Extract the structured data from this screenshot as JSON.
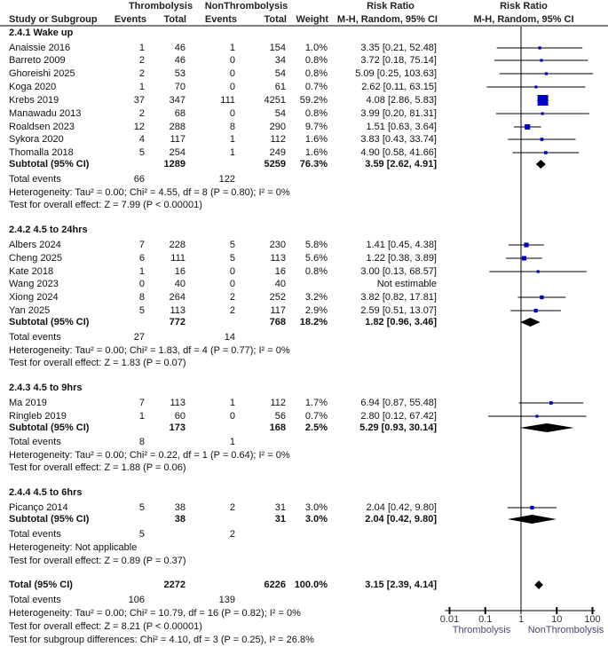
{
  "header": {
    "group1": "Thrombolysis",
    "group2": "NonThrombolysis",
    "rr_title": "Risk Ratio",
    "plot_title": "Risk Ratio",
    "study_col": "Study or Subgroup",
    "events": "Events",
    "total": "Total",
    "weight": "Weight",
    "method": "M-H, Random, 95% CI",
    "plot_method": "M-H, Random, 95% CI"
  },
  "chart_data": {
    "type": "forest",
    "x_scale": "log",
    "xlim": [
      0.01,
      100
    ],
    "x_ticks": [
      "0.01",
      "0.1",
      "1",
      "10",
      "100"
    ],
    "x_label_left": "Thrombolysis",
    "x_label_right": "NonThrombolysis",
    "marker_color": "#0000c8",
    "subgroups": [
      {
        "title": "2.4.1 Wake up",
        "studies": [
          {
            "name": "Anaissie 2016",
            "e1": "1",
            "n1": "46",
            "e2": "1",
            "n2": "154",
            "weight": "1.0%",
            "w": 1.0,
            "rr": 3.35,
            "lo": 0.21,
            "hi": 52.48,
            "ci": "3.35 [0.21, 52.48]"
          },
          {
            "name": "Barreto 2009",
            "e1": "2",
            "n1": "46",
            "e2": "0",
            "n2": "34",
            "weight": "0.8%",
            "w": 0.8,
            "rr": 3.72,
            "lo": 0.18,
            "hi": 75.14,
            "ci": "3.72 [0.18, 75.14]"
          },
          {
            "name": "Ghoreishi 2025",
            "e1": "2",
            "n1": "53",
            "e2": "0",
            "n2": "54",
            "weight": "0.8%",
            "w": 0.8,
            "rr": 5.09,
            "lo": 0.25,
            "hi": 103.63,
            "ci": "5.09 [0.25, 103.63]"
          },
          {
            "name": "Koga 2020",
            "e1": "1",
            "n1": "70",
            "e2": "0",
            "n2": "61",
            "weight": "0.7%",
            "w": 0.7,
            "rr": 2.62,
            "lo": 0.11,
            "hi": 63.15,
            "ci": "2.62 [0.11, 63.15]"
          },
          {
            "name": "Krebs 2019",
            "e1": "37",
            "n1": "347",
            "e2": "111",
            "n2": "4251",
            "weight": "59.2%",
            "w": 59.2,
            "rr": 4.08,
            "lo": 2.86,
            "hi": 5.83,
            "ci": "4.08 [2.86, 5.83]"
          },
          {
            "name": "Manawadu 2013",
            "e1": "2",
            "n1": "68",
            "e2": "0",
            "n2": "54",
            "weight": "0.8%",
            "w": 0.8,
            "rr": 3.99,
            "lo": 0.2,
            "hi": 81.31,
            "ci": "3.99 [0.20, 81.31]"
          },
          {
            "name": "Roaldsen 2023",
            "e1": "12",
            "n1": "288",
            "e2": "8",
            "n2": "290",
            "weight": "9.7%",
            "w": 9.7,
            "rr": 1.51,
            "lo": 0.63,
            "hi": 3.64,
            "ci": "1.51 [0.63, 3.64]"
          },
          {
            "name": "Sykora 2020",
            "e1": "4",
            "n1": "117",
            "e2": "1",
            "n2": "112",
            "weight": "1.6%",
            "w": 1.6,
            "rr": 3.83,
            "lo": 0.43,
            "hi": 33.74,
            "ci": "3.83 [0.43, 33.74]"
          },
          {
            "name": "Thomalla 2018",
            "e1": "5",
            "n1": "254",
            "e2": "1",
            "n2": "249",
            "weight": "1.6%",
            "w": 1.6,
            "rr": 4.9,
            "lo": 0.58,
            "hi": 41.66,
            "ci": "4.90 [0.58, 41.66]"
          }
        ],
        "subtotal": {
          "label": "Subtotal (95% CI)",
          "n1": "1289",
          "n2": "5259",
          "weight": "76.3%",
          "rr": 3.59,
          "lo": 2.62,
          "hi": 4.91,
          "ci": "3.59 [2.62, 4.91]"
        },
        "total_events": {
          "label": "Total events",
          "e1": "66",
          "e2": "122"
        },
        "heterogeneity": "Heterogeneity: Tau² = 0.00; Chi² = 4.55, df = 8 (P = 0.80); I² = 0%",
        "overall": "Test for overall effect: Z = 7.99 (P < 0.00001)"
      },
      {
        "title": "2.4.2 4.5 to 24hrs",
        "studies": [
          {
            "name": "Albers 2024",
            "e1": "7",
            "n1": "228",
            "e2": "5",
            "n2": "230",
            "weight": "5.8%",
            "w": 5.8,
            "rr": 1.41,
            "lo": 0.45,
            "hi": 4.38,
            "ci": "1.41 [0.45, 4.38]"
          },
          {
            "name": "Cheng 2025",
            "e1": "6",
            "n1": "111",
            "e2": "5",
            "n2": "113",
            "weight": "5.6%",
            "w": 5.6,
            "rr": 1.22,
            "lo": 0.38,
            "hi": 3.89,
            "ci": "1.22 [0.38, 3.89]"
          },
          {
            "name": "Kate 2018",
            "e1": "1",
            "n1": "16",
            "e2": "0",
            "n2": "16",
            "weight": "0.8%",
            "w": 0.8,
            "rr": 3.0,
            "lo": 0.13,
            "hi": 68.57,
            "ci": "3.00 [0.13, 68.57]"
          },
          {
            "name": "Wang 2023",
            "e1": "0",
            "n1": "40",
            "e2": "0",
            "n2": "40",
            "weight": "",
            "w": null,
            "rr": null,
            "lo": null,
            "hi": null,
            "ci": "Not estimable"
          },
          {
            "name": "Xiong 2024",
            "e1": "8",
            "n1": "264",
            "e2": "2",
            "n2": "252",
            "weight": "3.2%",
            "w": 3.2,
            "rr": 3.82,
            "lo": 0.82,
            "hi": 17.81,
            "ci": "3.82 [0.82, 17.81]"
          },
          {
            "name": "Yan 2025",
            "e1": "5",
            "n1": "113",
            "e2": "2",
            "n2": "117",
            "weight": "2.9%",
            "w": 2.9,
            "rr": 2.59,
            "lo": 0.51,
            "hi": 13.07,
            "ci": "2.59 [0.51, 13.07]"
          }
        ],
        "subtotal": {
          "label": "Subtotal (95% CI)",
          "n1": "772",
          "n2": "768",
          "weight": "18.2%",
          "rr": 1.82,
          "lo": 0.96,
          "hi": 3.46,
          "ci": "1.82 [0.96, 3.46]"
        },
        "total_events": {
          "label": "Total events",
          "e1": "27",
          "e2": "14"
        },
        "heterogeneity": "Heterogeneity: Tau² = 0.00; Chi² = 1.83, df = 4 (P = 0.77); I² = 0%",
        "overall": "Test for overall effect: Z = 1.83 (P = 0.07)"
      },
      {
        "title": "2.4.3 4.5 to 9hrs",
        "studies": [
          {
            "name": "Ma 2019",
            "e1": "7",
            "n1": "113",
            "e2": "1",
            "n2": "112",
            "weight": "1.7%",
            "w": 1.7,
            "rr": 6.94,
            "lo": 0.87,
            "hi": 55.48,
            "ci": "6.94 [0.87, 55.48]"
          },
          {
            "name": "Ringleb 2019",
            "e1": "1",
            "n1": "60",
            "e2": "0",
            "n2": "56",
            "weight": "0.7%",
            "w": 0.7,
            "rr": 2.8,
            "lo": 0.12,
            "hi": 67.42,
            "ci": "2.80 [0.12, 67.42]"
          }
        ],
        "subtotal": {
          "label": "Subtotal (95% CI)",
          "n1": "173",
          "n2": "168",
          "weight": "2.5%",
          "rr": 5.29,
          "lo": 0.93,
          "hi": 30.14,
          "ci": "5.29 [0.93, 30.14]"
        },
        "total_events": {
          "label": "Total events",
          "e1": "8",
          "e2": "1"
        },
        "heterogeneity": "Heterogeneity: Tau² = 0.00; Chi² = 0.22, df = 1 (P = 0.64); I² = 0%",
        "overall": "Test for overall effect: Z = 1.88 (P = 0.06)"
      },
      {
        "title": "2.4.4 4.5 to 6hrs",
        "studies": [
          {
            "name": "Picanço 2014",
            "e1": "5",
            "n1": "38",
            "e2": "2",
            "n2": "31",
            "weight": "3.0%",
            "w": 3.0,
            "rr": 2.04,
            "lo": 0.42,
            "hi": 9.8,
            "ci": "2.04 [0.42, 9.80]"
          }
        ],
        "subtotal": {
          "label": "Subtotal (95% CI)",
          "n1": "38",
          "n2": "31",
          "weight": "3.0%",
          "rr": 2.04,
          "lo": 0.42,
          "hi": 9.8,
          "ci": "2.04 [0.42, 9.80]"
        },
        "total_events": {
          "label": "Total events",
          "e1": "5",
          "e2": "2"
        },
        "heterogeneity": "Heterogeneity: Not applicable",
        "overall": "Test for overall effect: Z = 0.89 (P = 0.37)"
      }
    ],
    "total": {
      "label": "Total (95% CI)",
      "n1": "2272",
      "n2": "6226",
      "weight": "100.0%",
      "rr": 3.15,
      "lo": 2.39,
      "hi": 4.14,
      "ci": "3.15 [2.39, 4.14]"
    },
    "total_events": {
      "label": "Total events",
      "e1": "106",
      "e2": "139"
    },
    "heterogeneity": "Heterogeneity: Tau² = 0.00; Chi² = 10.79, df = 16 (P = 0.82); I² = 0%",
    "overall": "Test for overall effect: Z = 8.21 (P < 0.00001)",
    "subgroup_diff": "Test for subgroup differences: Chi² = 4.10, df = 3 (P = 0.25), I² = 26.8%"
  }
}
